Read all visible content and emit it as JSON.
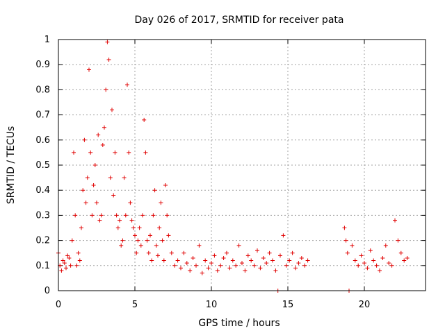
{
  "chart_data": {
    "type": "scatter",
    "title": "Day 026 of 2017, SRMTID for receiver pata",
    "xlabel": "GPS time / hours",
    "ylabel": "SRMTID / TECUs",
    "xlim": [
      0,
      24
    ],
    "ylim": [
      0,
      1
    ],
    "xticks": [
      0,
      5,
      10,
      15,
      20
    ],
    "xtick_labels": [
      "0",
      "5",
      "10",
      "15",
      "20"
    ],
    "yticks": [
      0,
      0.1,
      0.2,
      0.3,
      0.4,
      0.5,
      0.6,
      0.7,
      0.8,
      0.9,
      1
    ],
    "ytick_labels": [
      "0",
      "0.1",
      "0.2",
      "0.3",
      "0.4",
      "0.5",
      "0.6",
      "0.7",
      "0.8",
      "0.9",
      "1"
    ],
    "grid": true,
    "color": "#e00000",
    "series": [
      {
        "name": "SRMTID",
        "marker": "plus",
        "x": [
          0.0,
          0.1,
          0.2,
          0.3,
          0.4,
          0.5,
          0.6,
          0.7,
          0.8,
          0.9,
          1.0,
          1.1,
          1.2,
          1.3,
          1.4,
          1.5,
          1.6,
          1.7,
          1.8,
          1.9,
          2.0,
          2.1,
          2.2,
          2.3,
          2.4,
          2.5,
          2.6,
          2.7,
          2.8,
          2.9,
          3.0,
          3.1,
          3.2,
          3.3,
          3.4,
          3.5,
          3.6,
          3.7,
          3.8,
          3.9,
          4.0,
          4.1,
          4.2,
          4.3,
          4.4,
          4.5,
          4.6,
          4.7,
          4.8,
          4.9,
          5.0,
          5.1,
          5.2,
          5.3,
          5.4,
          5.5,
          5.6,
          5.7,
          5.8,
          5.9,
          6.0,
          6.1,
          6.2,
          6.3,
          6.4,
          6.5,
          6.6,
          6.7,
          6.8,
          6.9,
          7.0,
          7.1,
          7.2,
          7.4,
          7.6,
          7.8,
          8.0,
          8.2,
          8.4,
          8.6,
          8.8,
          9.0,
          9.2,
          9.4,
          9.6,
          9.8,
          10.0,
          10.2,
          10.4,
          10.6,
          10.8,
          11.0,
          11.2,
          11.4,
          11.6,
          11.8,
          12.0,
          12.2,
          12.4,
          12.6,
          12.8,
          13.0,
          13.2,
          13.4,
          13.6,
          13.8,
          14.0,
          14.2,
          14.35,
          14.5,
          14.7,
          14.9,
          15.1,
          15.3,
          15.5,
          15.7,
          15.9,
          16.1,
          16.3,
          18.7,
          18.8,
          18.9,
          19.0,
          19.2,
          19.4,
          19.6,
          19.8,
          20.0,
          20.2,
          20.4,
          20.6,
          20.8,
          21.0,
          21.2,
          21.4,
          21.6,
          21.8,
          22.0,
          22.2,
          22.4,
          22.6,
          22.8
        ],
        "y": [
          0.15,
          0.1,
          0.08,
          0.12,
          0.11,
          0.09,
          0.14,
          0.13,
          0.1,
          0.2,
          0.55,
          0.3,
          0.1,
          0.15,
          0.12,
          0.25,
          0.4,
          0.6,
          0.35,
          0.45,
          0.88,
          0.55,
          0.3,
          0.42,
          0.5,
          0.35,
          0.62,
          0.28,
          0.3,
          0.58,
          0.65,
          0.8,
          0.99,
          0.92,
          0.45,
          0.72,
          0.38,
          0.55,
          0.3,
          0.25,
          0.28,
          0.18,
          0.2,
          0.45,
          0.3,
          0.82,
          0.55,
          0.35,
          0.28,
          0.25,
          0.22,
          0.15,
          0.2,
          0.25,
          0.18,
          0.3,
          0.68,
          0.55,
          0.2,
          0.15,
          0.22,
          0.12,
          0.3,
          0.4,
          0.18,
          0.14,
          0.25,
          0.35,
          0.2,
          0.12,
          0.42,
          0.3,
          0.22,
          0.15,
          0.1,
          0.12,
          0.09,
          0.15,
          0.11,
          0.08,
          0.13,
          0.1,
          0.18,
          0.07,
          0.12,
          0.09,
          0.11,
          0.14,
          0.08,
          0.1,
          0.13,
          0.15,
          0.09,
          0.12,
          0.1,
          0.18,
          0.11,
          0.08,
          0.14,
          0.12,
          0.1,
          0.16,
          0.09,
          0.13,
          0.11,
          0.15,
          0.12,
          0.08,
          0.0,
          0.14,
          0.22,
          0.1,
          0.12,
          0.15,
          0.09,
          0.11,
          0.13,
          0.1,
          0.12,
          0.25,
          0.2,
          0.15,
          0.0,
          0.18,
          0.12,
          0.1,
          0.14,
          0.11,
          0.09,
          0.16,
          0.12,
          0.1,
          0.08,
          0.13,
          0.18,
          0.11,
          0.1,
          0.28,
          0.2,
          0.15,
          0.12,
          0.13
        ]
      }
    ]
  }
}
